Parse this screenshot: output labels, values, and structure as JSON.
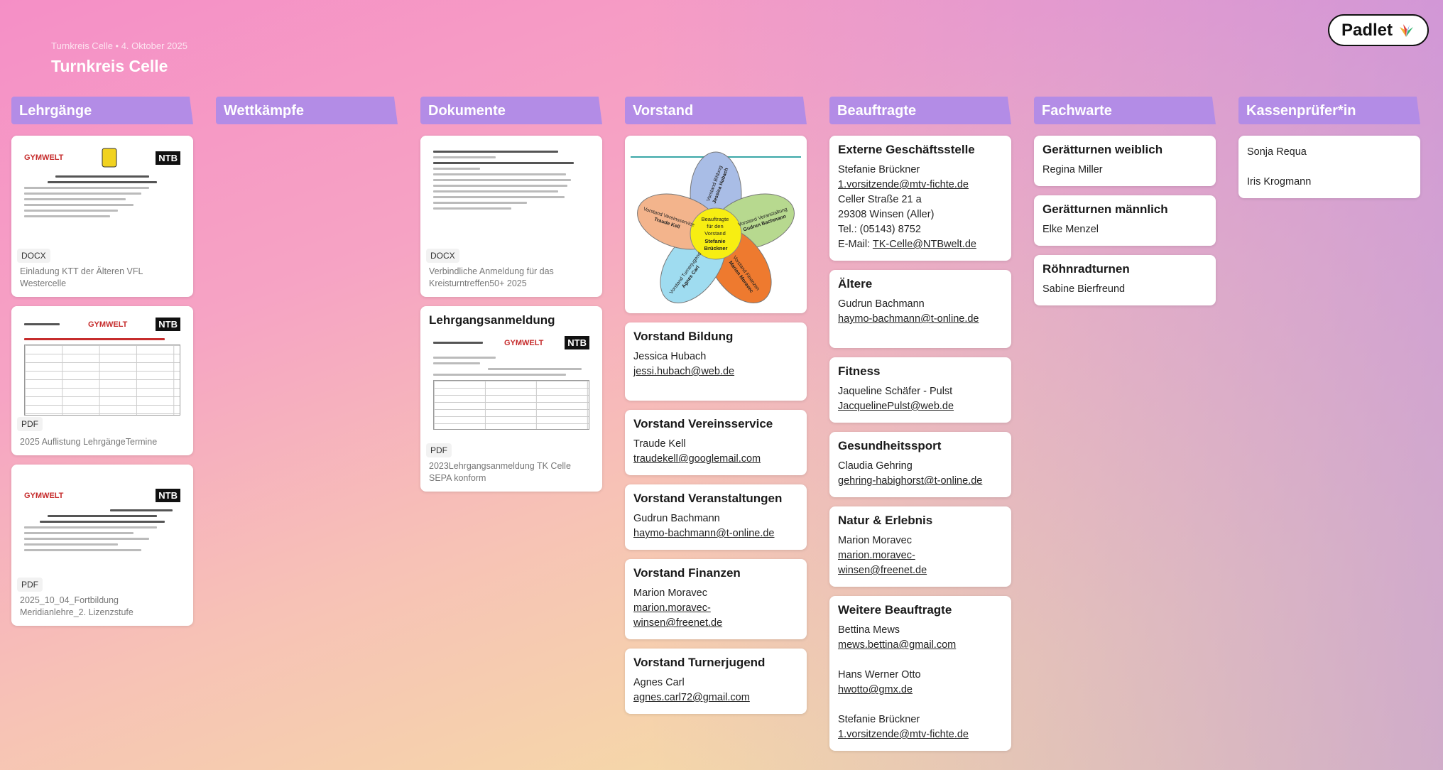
{
  "board": {
    "subtitle": "Turnkreis Celle • 4. Oktober 2025",
    "title": "Turnkreis Celle",
    "logo": "Padlet"
  },
  "columns": [
    {
      "title": "Lehrgänge"
    },
    {
      "title": "Wettkämpfe"
    },
    {
      "title": "Dokumente"
    },
    {
      "title": "Vorstand"
    },
    {
      "title": "Beauftragte"
    },
    {
      "title": "Fachwarte"
    },
    {
      "title": "Kassenprüfer*in"
    }
  ],
  "lehrgaenge": [
    {
      "type": "DOCX",
      "caption": "Einladung KTT der Älteren VFL Westercelle"
    },
    {
      "type": "PDF",
      "caption": "2025 Auflistung LehrgängeTermine"
    },
    {
      "type": "PDF",
      "caption": "2025_10_04_Fortbildung Meridianlehre_2. Lizenzstufe"
    }
  ],
  "dokumente": [
    {
      "type": "DOCX",
      "caption": "Verbindliche Anmeldung für das Kreisturntreffen50+ 2025"
    },
    {
      "title": "Lehrgangsanmeldung",
      "type": "PDF",
      "caption": "2023Lehrgangsanmeldung TK Celle SEPA konform"
    }
  ],
  "vorstand": [
    {
      "title": "Vorstand Bildung",
      "lines": [
        "Jessica Hubach"
      ],
      "links": [
        " jessi.hubach@web.de"
      ]
    },
    {
      "title": "Vorstand Vereinsservice",
      "lines": [
        "Traude Kell"
      ],
      "links": [
        "traudekell@googlemail.com"
      ]
    },
    {
      "title": "Vorstand Veranstaltungen",
      "lines": [
        "Gudrun Bachmann"
      ],
      "links": [
        "haymo-bachmann@t-online.de"
      ]
    },
    {
      "title": "Vorstand Finanzen",
      "lines": [
        "Marion Moravec"
      ],
      "links": [
        "marion.moravec-",
        "winsen@freenet.de"
      ]
    },
    {
      "title": "Vorstand Turnerjugend",
      "lines": [
        "Agnes Carl"
      ],
      "links": [
        "agnes.carl72@gmail.com "
      ]
    }
  ],
  "flower": {
    "center": [
      "Beauftragte",
      "für den",
      "Vorstand",
      "Stefanie",
      "Brückner"
    ],
    "petals": [
      {
        "l1": "Vorstand Bildung",
        "l2": "Jessica Hubach",
        "color": "#a9bde6"
      },
      {
        "l1": "Vorstand Veranstaltung",
        "l2": "Gudrun Bachmann",
        "color": "#b7d98f"
      },
      {
        "l1": "Vorstand Finanzen",
        "l2": "Marion Moravec",
        "color": "#ee7a2f"
      },
      {
        "l1": "Vorstand Turnerjugend",
        "l2": "Agnes Carl",
        "color": "#9fdcf0"
      },
      {
        "l1": "Vorstand Vereinsservice",
        "l2": "Traude Kell",
        "color": "#f3b48c"
      }
    ]
  },
  "beauftragte": {
    "extern": {
      "title": "Externe Geschäftsstelle",
      "name": "Stefanie Brückner",
      "email": "1.vorsitzende@mtv-fichte.de",
      "street": "Celler Straße 21 a",
      "city": "29308 Winsen (Aller)",
      "tel": "Tel.: (05143) 8752",
      "email2_label": "E-Mail: ",
      "email2": "TK-Celle@NTBwelt.de"
    },
    "aeltere": {
      "title": "Ältere",
      "name": "Gudrun Bachmann",
      "email": "haymo-bachmann@t-online.de"
    },
    "fitness": {
      "title": "Fitness",
      "name": "Jaqueline Schäfer - Pulst",
      "email": "JacquelinePulst@web.de"
    },
    "gesundheit": {
      "title": "Gesundheitssport",
      "name": "Claudia Gehring",
      "email": "gehring-habighorst@t-online.de"
    },
    "natur": {
      "title": "Natur & Erlebnis",
      "name": "Marion Moravec",
      "email1": "marion.moravec-",
      "email2": "winsen@freenet.de"
    },
    "weitere": {
      "title": "Weitere Beauftragte",
      "p1": "Bettina Mews",
      "e1": "mews.bettina@gmail.com",
      "p2": "Hans Werner Otto",
      "e2": "hwotto@gmx.de",
      "p3": "Stefanie Brückner",
      "e3": "1.vorsitzende@mtv-fichte.de"
    }
  },
  "fachwarte": [
    {
      "title": "Gerätturnen weiblich",
      "name": "Regina Miller"
    },
    {
      "title": "Gerätturnen männlich",
      "name": "Elke Menzel"
    },
    {
      "title": "Röhnradturnen",
      "name": "Sabine Bierfreund"
    }
  ],
  "kassenpruefer": [
    "Sonja Requa",
    "Iris Krogmann"
  ]
}
